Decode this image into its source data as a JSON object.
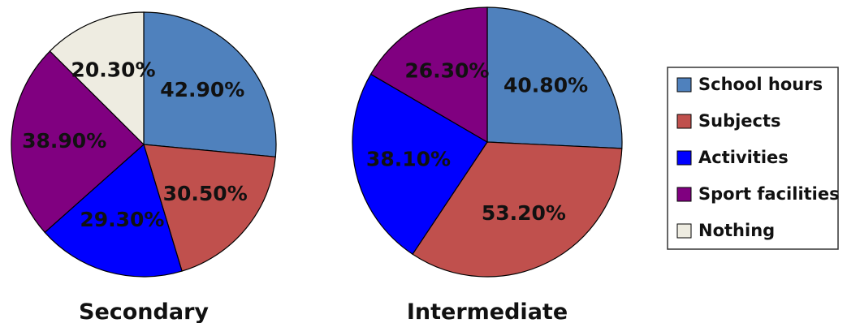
{
  "chart_data": {
    "type": "pie",
    "legend_position": "right",
    "legend": [
      {
        "name": "School hours",
        "color": "#4F81BD"
      },
      {
        "name": "Subjects",
        "color": "#C0504D"
      },
      {
        "name": "Activities",
        "color": "#0000FF"
      },
      {
        "name": "Sport facilities",
        "color": "#800080"
      },
      {
        "name": "Nothing",
        "color": "#EEECE1"
      }
    ],
    "pies": [
      {
        "title": "Secondary",
        "slices": [
          {
            "name": "School hours",
            "label": "42.90%",
            "value": 42.9
          },
          {
            "name": "Subjects",
            "label": "30.50%",
            "value": 30.5
          },
          {
            "name": "Activities",
            "label": "29.30%",
            "value": 29.3
          },
          {
            "name": "Sport facilities",
            "label": "38.90%",
            "value": 38.9
          },
          {
            "name": "Nothing",
            "label": "20.30%",
            "value": 20.3
          }
        ]
      },
      {
        "title": "Intermediate",
        "slices": [
          {
            "name": "School hours",
            "label": "40.80%",
            "value": 40.8
          },
          {
            "name": "Subjects",
            "label": "53.20%",
            "value": 53.2
          },
          {
            "name": "Activities",
            "label": "38.10%",
            "value": 38.1
          },
          {
            "name": "Sport facilities",
            "label": "26.30%",
            "value": 26.3
          }
        ]
      }
    ]
  }
}
